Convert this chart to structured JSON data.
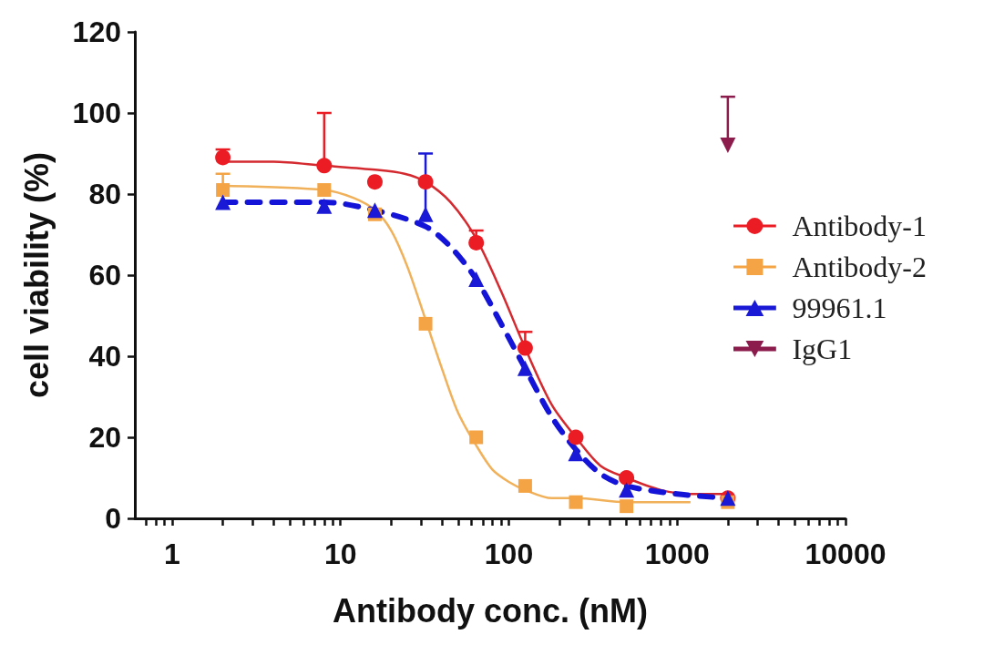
{
  "chart_data": {
    "type": "scatter",
    "xlabel": "Antibody conc. (nM)",
    "ylabel": "cell viability (%)",
    "log": "x",
    "grid": false,
    "legend": "right",
    "xlim": [
      0.6,
      10000
    ],
    "xticks": [
      {
        "value": 0.7,
        "label": null
      },
      {
        "value": 0.8,
        "label": null
      },
      {
        "value": 0.9,
        "label": null
      },
      1,
      {
        "value": 2,
        "label": null
      },
      {
        "value": 3,
        "label": null
      },
      {
        "value": 4,
        "label": null
      },
      {
        "value": 5,
        "label": null
      },
      {
        "value": 6,
        "label": null
      },
      {
        "value": 7,
        "label": null
      },
      {
        "value": 8,
        "label": null
      },
      {
        "value": 9,
        "label": null
      },
      10,
      {
        "value": 20,
        "label": null
      },
      {
        "value": 30,
        "label": null
      },
      {
        "value": 40,
        "label": null
      },
      {
        "value": 50,
        "label": null
      },
      {
        "value": 60,
        "label": null
      },
      {
        "value": 70,
        "label": null
      },
      {
        "value": 80,
        "label": null
      },
      {
        "value": 90,
        "label": null
      },
      100,
      {
        "value": 200,
        "label": null
      },
      {
        "value": 300,
        "label": null
      },
      {
        "value": 400,
        "label": null
      },
      {
        "value": 500,
        "label": null
      },
      {
        "value": 600,
        "label": null
      },
      {
        "value": 700,
        "label": null
      },
      {
        "value": 800,
        "label": null
      },
      {
        "value": 900,
        "label": null
      },
      1000,
      {
        "value": 2000,
        "label": null
      },
      {
        "value": 3000,
        "label": null
      },
      {
        "value": 4000,
        "label": null
      },
      {
        "value": 5000,
        "label": null
      },
      {
        "value": 6000,
        "label": null
      },
      {
        "value": 7000,
        "label": null
      },
      {
        "value": 8000,
        "label": null
      },
      {
        "value": 9000,
        "label": null
      },
      10000
    ],
    "ylim": [
      0,
      120
    ],
    "yticks": [
      0,
      20,
      40,
      60,
      80,
      100,
      120
    ],
    "x": [
      2,
      8,
      16,
      32,
      64,
      125,
      250,
      500,
      2000
    ],
    "series": [
      {
        "type": "line",
        "marker": "none",
        "line_style": "solid",
        "color": "#d42a2f",
        "x": [
          2,
          4,
          8,
          16,
          24,
          32,
          45,
          64,
          90,
          125,
          180,
          250,
          350,
          500,
          800,
          1200,
          2000
        ],
        "values": [
          88,
          88,
          87,
          86,
          85,
          83,
          78,
          69,
          56,
          42,
          28,
          20,
          13,
          10,
          7,
          6,
          6
        ]
      },
      {
        "type": "line",
        "marker": "none",
        "line_style": "solid",
        "color": "#f0b15a",
        "x": [
          2,
          8,
          12,
          16,
          20,
          25,
          32,
          40,
          50,
          64,
          80,
          100,
          125,
          180,
          250,
          500,
          1200
        ],
        "values": [
          82,
          81,
          79,
          76,
          71,
          62,
          49,
          37,
          26,
          18,
          12,
          9,
          7,
          5,
          5,
          4,
          4
        ]
      },
      {
        "type": "line",
        "marker": "none",
        "line_style": "dashed",
        "color": "#1414d8",
        "x": [
          2,
          8,
          16,
          32,
          45,
          64,
          90,
          125,
          180,
          250,
          350,
          500,
          1000,
          2000
        ],
        "values": [
          78,
          78,
          76,
          72,
          67,
          59,
          48,
          37,
          25,
          17,
          11,
          8,
          6,
          5
        ]
      },
      {
        "name": "Antibody-1",
        "marker": "circle",
        "color": "#ec1c24",
        "values": [
          89,
          87,
          83,
          83,
          68,
          42,
          20,
          10,
          5
        ],
        "errors": [
          [
            89,
            91
          ],
          [
            87,
            100
          ],
          null,
          null,
          [
            68,
            71
          ],
          [
            42,
            46
          ],
          null,
          null,
          null
        ]
      },
      {
        "name": "Antibody-2",
        "marker": "square",
        "color": "#f5a445",
        "values": [
          81,
          81,
          75,
          48,
          20,
          8,
          4,
          3,
          4
        ],
        "errors": [
          [
            81,
            85
          ],
          null,
          null,
          null,
          null,
          null,
          null,
          null,
          null
        ]
      },
      {
        "name": "99961.1",
        "marker": "triangle",
        "color": "#1a1ad6",
        "values": [
          78,
          77,
          76,
          75,
          59,
          37,
          16,
          7,
          5
        ],
        "errors": [
          null,
          null,
          null,
          [
            75,
            90
          ],
          null,
          null,
          null,
          null,
          null
        ]
      },
      {
        "name": "IgG1",
        "marker": "triangle-down",
        "color": "#8c1c4c",
        "x": [
          2000
        ],
        "values": [
          92
        ],
        "errors": [
          [
            92,
            104
          ]
        ]
      }
    ]
  }
}
